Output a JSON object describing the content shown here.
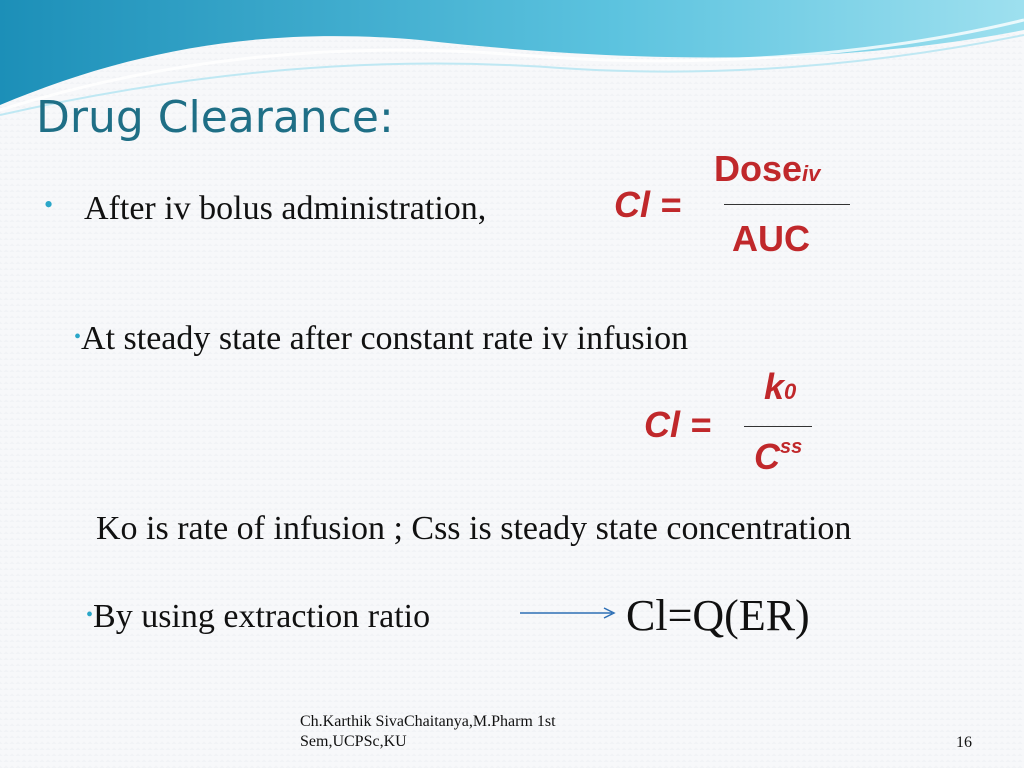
{
  "slide": {
    "title": "Drug Clearance:",
    "bullets": [
      {
        "marker": "•",
        "text": "After iv bolus administration,"
      },
      {
        "marker": "•",
        "text": "At steady state after constant rate iv infusion"
      },
      {
        "text": "Ko is rate of infusion ; Css is steady state concentration"
      },
      {
        "marker": "•",
        "text": "By using extraction ratio"
      }
    ],
    "formula1": {
      "lhs": "Cl =",
      "numerator": "Dose",
      "numerator_sub": "iv",
      "denominator": "AUC"
    },
    "formula2": {
      "lhs": "Cl =",
      "numerator": "k",
      "numerator_sub": "0",
      "denominator": "C",
      "denominator_sup": "ss"
    },
    "formula3": "Cl=Q(ER)",
    "footer": "Ch.Karthik SivaChaitanya,M.Pharm 1st Sem,UCPSc,KU",
    "page_number": "16"
  },
  "colors": {
    "title": "#1f6f86",
    "formula": "#c0282b",
    "bullet": "#2aa6c8",
    "arrow": "#2d6fb5"
  }
}
